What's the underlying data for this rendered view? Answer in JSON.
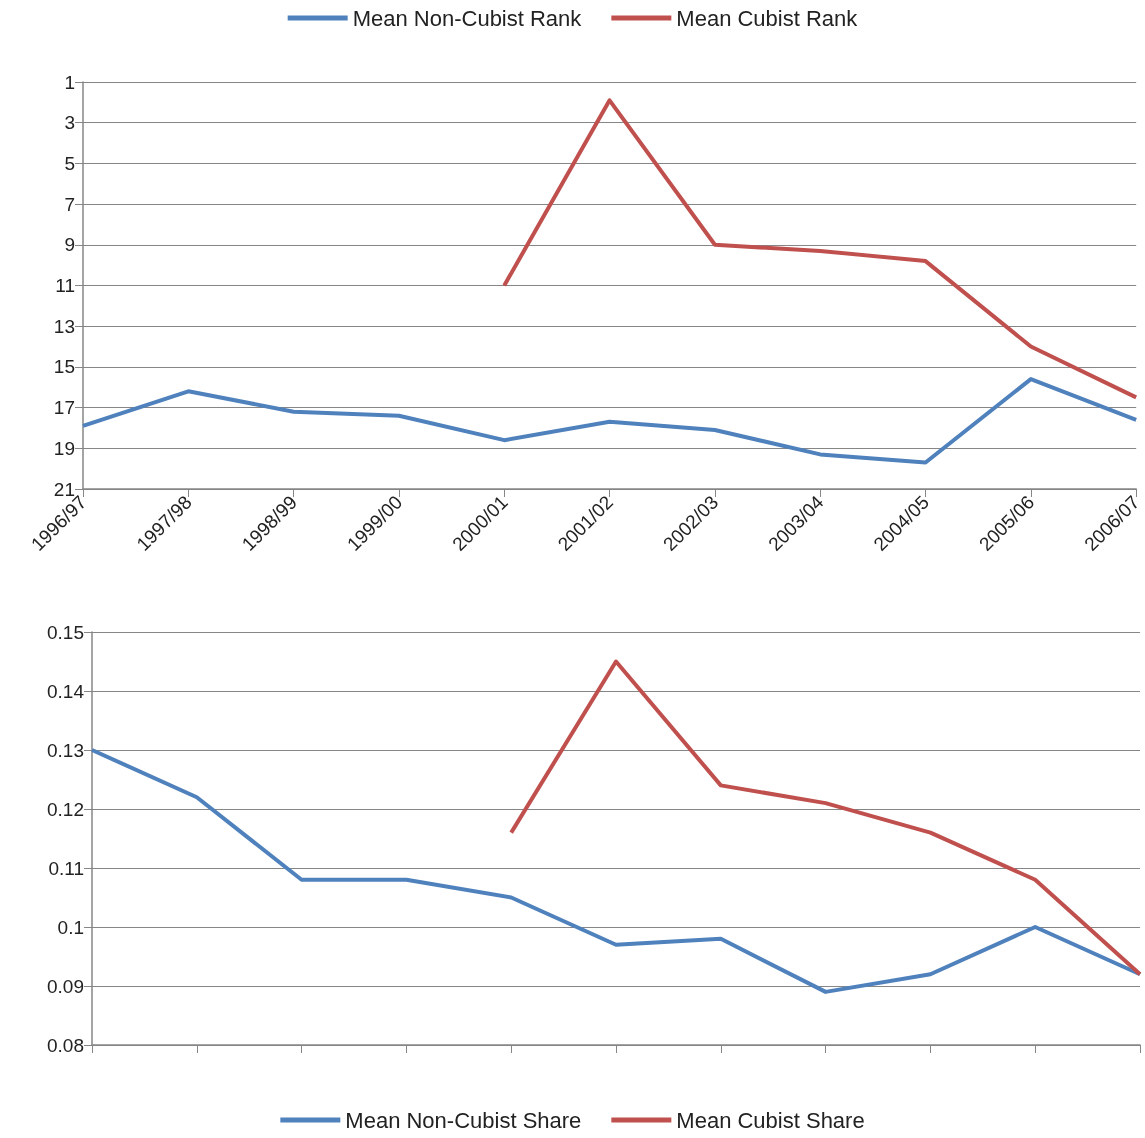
{
  "chart_data": [
    {
      "type": "line",
      "categories": [
        "1996/97",
        "1997/98",
        "1998/99",
        "1999/00",
        "2000/01",
        "2001/02",
        "2002/03",
        "2003/04",
        "2004/05",
        "2005/06",
        "2006/07"
      ],
      "series": [
        {
          "name": "Mean Non-Cubist Rank",
          "color": "#4f81bd",
          "values": [
            17.9,
            16.2,
            17.2,
            17.4,
            18.6,
            17.7,
            18.1,
            19.3,
            19.7,
            15.6,
            17.6
          ]
        },
        {
          "name": "Mean Cubist Rank",
          "color": "#c0504d",
          "values": [
            null,
            null,
            null,
            null,
            11.0,
            1.9,
            9.0,
            9.3,
            9.8,
            14.0,
            16.5
          ]
        }
      ],
      "ylim": [
        21,
        1
      ],
      "yticks": [
        1,
        3,
        5,
        7,
        9,
        11,
        13,
        15,
        17,
        19,
        21
      ],
      "grid": "y",
      "legend": "top",
      "marker": "none"
    },
    {
      "type": "line",
      "categories": [
        null,
        null,
        null,
        null,
        null,
        null,
        null,
        null,
        null,
        null,
        null
      ],
      "series": [
        {
          "name": "Mean Non-Cubist Share",
          "color": "#4f81bd",
          "values": [
            0.13,
            0.122,
            0.108,
            0.108,
            0.105,
            0.097,
            0.098,
            0.089,
            0.092,
            0.1,
            0.092
          ]
        },
        {
          "name": "Mean Cubist Share",
          "color": "#c0504d",
          "values": [
            null,
            null,
            null,
            null,
            0.116,
            0.145,
            0.124,
            0.121,
            0.116,
            0.108,
            0.092
          ]
        }
      ],
      "ylim": [
        0.08,
        0.15
      ],
      "yticks": [
        0.08,
        0.09,
        0.1,
        0.11,
        0.12,
        0.13,
        0.14,
        0.15
      ],
      "grid": "y",
      "legend": "bottom",
      "marker": "none",
      "tick_labels": "y"
    }
  ]
}
